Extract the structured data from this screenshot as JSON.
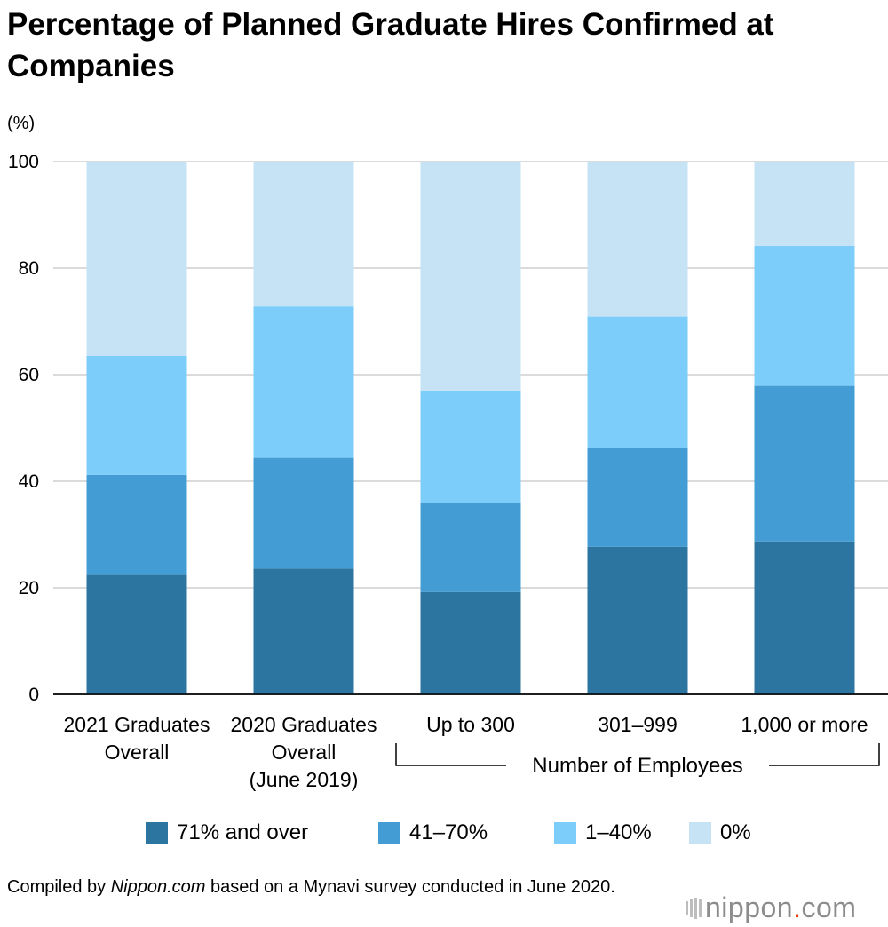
{
  "title": "Percentage of Planned Graduate Hires Confirmed at Companies",
  "unit_label": "(%)",
  "group_label": "Number of Employees",
  "source_prefix": "Compiled by ",
  "source_italic": "Nippon.com",
  "source_suffix": " based on a Mynavi survey conducted in June 2020.",
  "brand": {
    "name": "nippon",
    "dot": ".",
    "tld": "com"
  },
  "colors": {
    "71% and over": "#2c75a1",
    "41–70%": "#439cd3",
    "1–40%": "#7dcdfb",
    "0%": "#c5e3f4",
    "grid": "#cfcfcf",
    "brand_accent": "#e8380d"
  },
  "chart_data": {
    "type": "bar",
    "stacked": true,
    "title": "Percentage of Planned Graduate Hires Confirmed at Companies",
    "ylabel": "(%)",
    "ylim": [
      0,
      100
    ],
    "yticks": [
      0,
      20,
      40,
      60,
      80,
      100
    ],
    "grid": true,
    "legend_position": "bottom",
    "categories": [
      [
        "2021 Graduates",
        "Overall"
      ],
      [
        "2020 Graduates",
        "Overall",
        "(June 2019)"
      ],
      [
        "Up to 300"
      ],
      [
        "301–999"
      ],
      [
        "1,000 or more"
      ]
    ],
    "series": [
      {
        "name": "71% and over",
        "values": [
          22.4,
          23.6,
          19.2,
          27.7,
          28.7
        ]
      },
      {
        "name": "41–70%",
        "values": [
          18.8,
          20.8,
          16.8,
          18.5,
          29.2
        ]
      },
      {
        "name": "1–40%",
        "values": [
          22.3,
          28.4,
          21.0,
          24.7,
          26.3
        ]
      },
      {
        "name": "0%",
        "values": [
          36.5,
          27.2,
          43.0,
          29.1,
          15.8
        ]
      }
    ],
    "bracket": {
      "label": "Number of Employees",
      "spans_categories": [
        2,
        3,
        4
      ]
    }
  }
}
